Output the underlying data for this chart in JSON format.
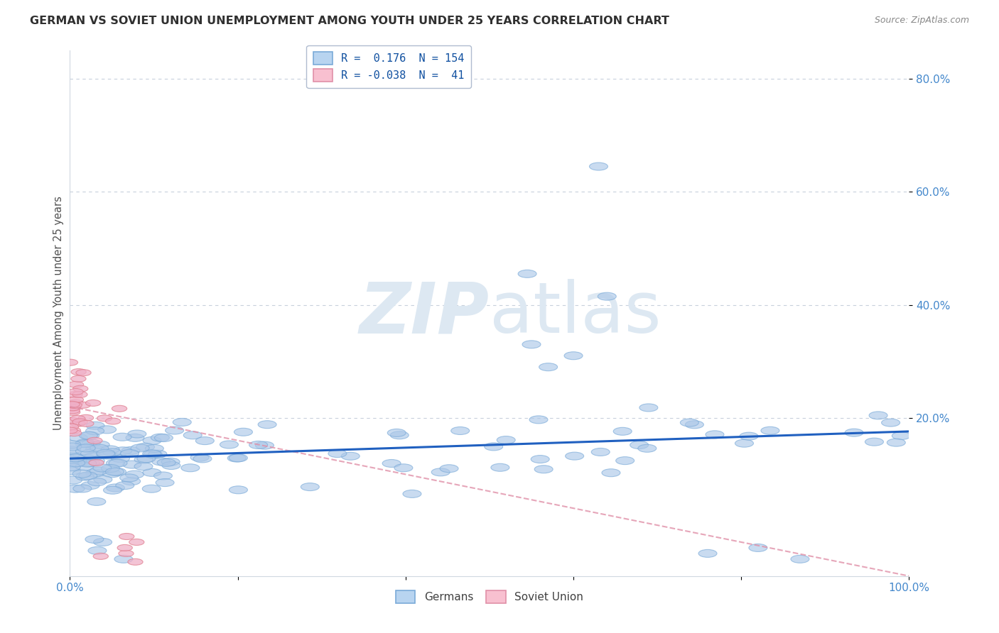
{
  "title": "GERMAN VS SOVIET UNION UNEMPLOYMENT AMONG YOUTH UNDER 25 YEARS CORRELATION CHART",
  "source": "Source: ZipAtlas.com",
  "ylabel": "Unemployment Among Youth under 25 years",
  "ytick_values": [
    0.2,
    0.4,
    0.6,
    0.8
  ],
  "legend_r_blue": "R =  0.176",
  "legend_n_blue": "N = 154",
  "legend_r_pink": "R = -0.038",
  "legend_n_pink": "N =  41",
  "blue_color_fill": "#adc8e8",
  "blue_color_edge": "#7aaad8",
  "pink_color_fill": "#f0b0c8",
  "pink_color_edge": "#e08090",
  "trend_blue_color": "#2060c0",
  "trend_pink_color": "#e090a8",
  "title_color": "#303030",
  "axis_label_color": "#4488cc",
  "watermark_color": "#dde8f2",
  "background_color": "#ffffff",
  "grid_color": "#c8d0dc",
  "xlim": [
    0.0,
    1.0
  ],
  "ylim": [
    -0.08,
    0.85
  ],
  "blue_trend_intercept": 0.128,
  "blue_trend_slope": 0.048,
  "pink_trend_intercept": 0.22,
  "pink_trend_slope": -0.3
}
